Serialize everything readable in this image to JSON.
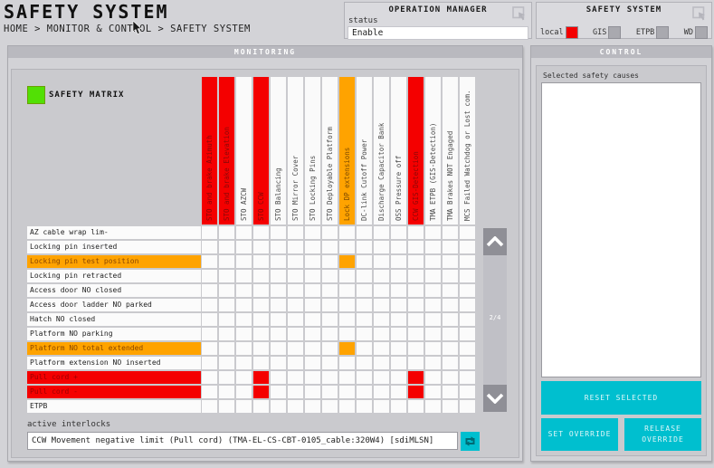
{
  "page": {
    "title": "SAFETY SYSTEM",
    "breadcrumb": "HOME > MONITOR & CONTROL > SAFETY SYSTEM"
  },
  "operation_manager": {
    "title": "OPERATION MANAGER",
    "status_label": "status",
    "status_value": "Enable"
  },
  "safety_system_panel": {
    "title": "SAFETY SYSTEM",
    "indicators": [
      {
        "label": "local",
        "color": "#f40000"
      },
      {
        "label": "GIS",
        "color": "#a9a9af"
      },
      {
        "label": "ETPB",
        "color": "#a9a9af"
      },
      {
        "label": "WD",
        "color": "#a9a9af"
      }
    ]
  },
  "monitoring": {
    "title": "MONITORING",
    "matrix_label": "SAFETY MATRIX",
    "legend_color": "#52e005",
    "page_indicator": "2/4",
    "matrix": {
      "columns": [
        {
          "label": "STO and brake Azimuth",
          "color": "red"
        },
        {
          "label": "STO and brake Elevation",
          "color": "red"
        },
        {
          "label": "STO AZCW",
          "color": "none"
        },
        {
          "label": "STO CCW",
          "color": "red"
        },
        {
          "label": "STO Balancing",
          "color": "none"
        },
        {
          "label": "STO Mirror Cover",
          "color": "none"
        },
        {
          "label": "STO Locking Pins",
          "color": "none"
        },
        {
          "label": "STO Deployable Platform",
          "color": "none"
        },
        {
          "label": "Lock DP extensions",
          "color": "orange"
        },
        {
          "label": "DC-link Cutoff Power",
          "color": "none"
        },
        {
          "label": "Discharge Capacitor Bank",
          "color": "none"
        },
        {
          "label": "OSS Pressure off",
          "color": "none"
        },
        {
          "label": "CCW GIS-Detection",
          "color": "red"
        },
        {
          "label": "TMA ETPB (GIS-Detection)",
          "color": "none"
        },
        {
          "label": "TMA Brakes NOT Engaged",
          "color": "none"
        },
        {
          "label": "MCS Failed Watchdog or Lost com.",
          "color": "none"
        }
      ],
      "rows": [
        {
          "label": "AZ cable wrap lim-",
          "color": "none"
        },
        {
          "label": "Locking pin inserted",
          "color": "none"
        },
        {
          "label": "Locking pin test position",
          "color": "orange"
        },
        {
          "label": "Locking pin retracted",
          "color": "none"
        },
        {
          "label": "Access door NO closed",
          "color": "none"
        },
        {
          "label": "Access door ladder NO parked",
          "color": "none"
        },
        {
          "label": "Hatch NO closed",
          "color": "none"
        },
        {
          "label": "Platform NO parking",
          "color": "none"
        },
        {
          "label": "Platform NO total extended",
          "color": "orange"
        },
        {
          "label": "Platform extension NO inserted",
          "color": "none"
        },
        {
          "label": "Pull cord +",
          "color": "red"
        },
        {
          "label": "Pull cord -",
          "color": "red"
        },
        {
          "label": "ETPB",
          "color": "none"
        }
      ],
      "active_cells": [
        {
          "row": 2,
          "col": 8,
          "color": "orange"
        },
        {
          "row": 8,
          "col": 8,
          "color": "orange"
        },
        {
          "row": 10,
          "col": 3,
          "color": "red"
        },
        {
          "row": 10,
          "col": 12,
          "color": "red"
        },
        {
          "row": 11,
          "col": 3,
          "color": "red"
        },
        {
          "row": 11,
          "col": 12,
          "color": "red"
        }
      ]
    },
    "active_interlocks": {
      "label": "active interlocks",
      "value": "CCW Movement negative limit (Pull cord) (TMA-EL-CS-CBT-0105_cable:320W4) [sdiMLSN]"
    }
  },
  "control": {
    "title": "CONTROL",
    "selected_label": "Selected safety causes",
    "reset_button": "RESET SELECTED",
    "set_override_button": "SET OVERRIDE",
    "release_override_button": "RELEASE OVERRIDE"
  },
  "colors": {
    "red": "#f40000",
    "orange": "#ffa300",
    "accent_cyan": "#00bfcf",
    "green": "#52e005"
  }
}
